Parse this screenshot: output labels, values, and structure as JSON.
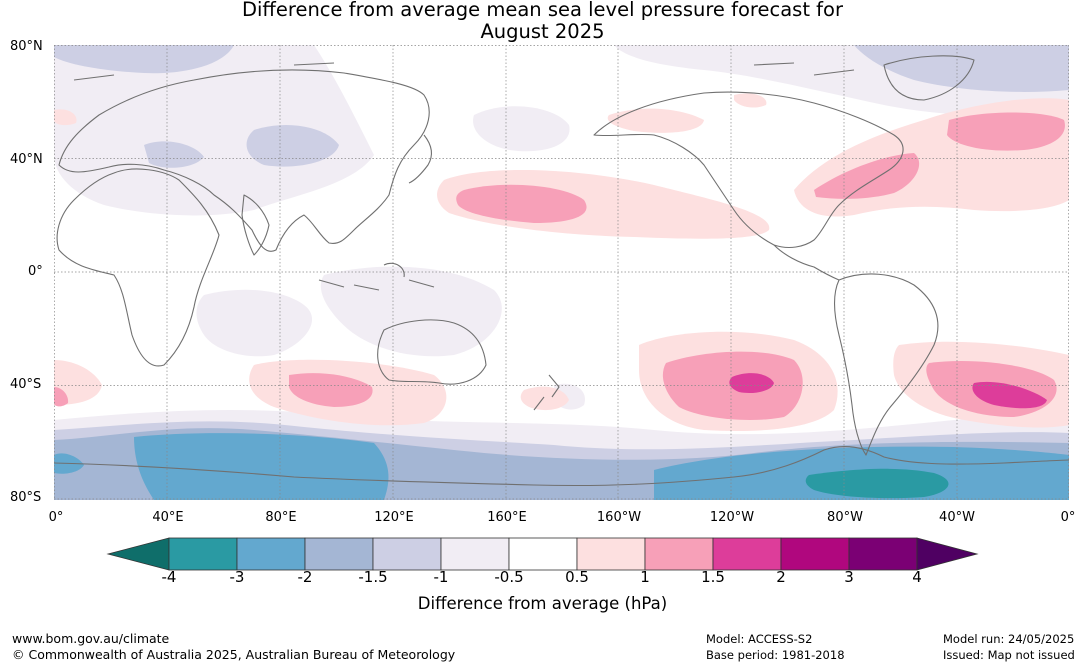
{
  "title": {
    "line1": "Difference from average mean sea level pressure forecast for",
    "line2": "August 2025"
  },
  "axes": {
    "lat_labels": [
      "80°N",
      "40°N",
      "0°",
      "40°S",
      "80°S"
    ],
    "lon_labels": [
      "0°",
      "40°E",
      "80°E",
      "120°E",
      "160°E",
      "160°W",
      "120°W",
      "80°W",
      "40°W",
      "0°"
    ]
  },
  "colorbar": {
    "title": "Difference from average (hPa)",
    "ticks": [
      "-4",
      "-3",
      "-2",
      "-1.5",
      "-1",
      "-0.5",
      "0.5",
      "1",
      "1.5",
      "2",
      "3",
      "4"
    ],
    "colors": [
      "#0f6e6a",
      "#2a9aa3",
      "#63a8cf",
      "#a4b6d4",
      "#cdcfe4",
      "#f1edf4",
      "#ffffff",
      "#fde0e0",
      "#f7a0b8",
      "#dd3d9a",
      "#b0077e",
      "#7b0074",
      "#4f0062"
    ]
  },
  "map": {
    "layers": {
      "neg_weak": "#f1edf4",
      "neg_1": "#cdcfe4",
      "neg_15": "#a4b6d4",
      "neg_2": "#63a8cf",
      "neg_3": "#2a9aa3",
      "pos_weak": "#fde0e0",
      "pos_1": "#f7a0b8",
      "pos_15": "#dd3d9a"
    },
    "coastline_color": "#707070",
    "grid_color": "#888888"
  },
  "footer": {
    "url": "www.bom.gov.au/climate",
    "copyright": "© Commonwealth of Australia 2025, Australian Bureau of Meteorology",
    "model": "Model: ACCESS-S2",
    "base_period": "Base period: 1981-2018",
    "model_run": "Model run: 24/05/2025",
    "issued": "Issued: Map not issued"
  }
}
